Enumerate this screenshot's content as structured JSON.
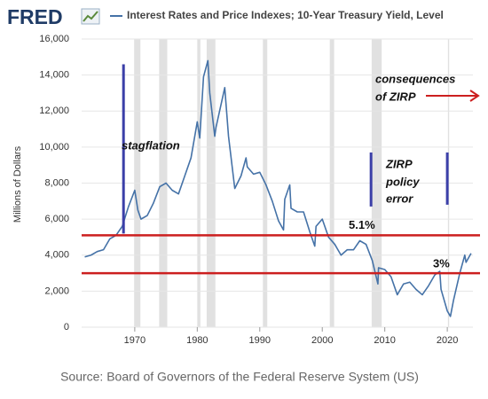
{
  "chart_data": {
    "type": "line",
    "logo": "FRED",
    "y_label": "Millions of Dollars",
    "source": "Source: Board of Governors of the Federal Reserve System (US)",
    "xlim": [
      1961.5,
      2024.1
    ],
    "xticks": [
      1970,
      1980,
      1990,
      2000,
      2010,
      2020
    ],
    "ylim": [
      0,
      16000
    ],
    "yticks": [
      0,
      {
        "value": 2000,
        "label": "2,000"
      },
      {
        "value": 4000,
        "label": "4,000"
      },
      {
        "value": 6000,
        "label": "6,000"
      },
      {
        "value": 8000,
        "label": "8,000"
      },
      {
        "value": 10000,
        "label": "10,000"
      },
      {
        "value": 12000,
        "label": "12,000"
      },
      {
        "value": 14000,
        "label": "14,000"
      },
      {
        "value": 16000,
        "label": "16,000"
      }
    ],
    "grid": true,
    "x": [
      1962,
      1963,
      1964,
      1965,
      1966,
      1967,
      1968,
      1969,
      1970,
      1970.5,
      1971,
      1972,
      1973,
      1974,
      1975,
      1976,
      1977,
      1978,
      1979,
      1980,
      1980.4,
      1981,
      1981.7,
      1982,
      1982.8,
      1983,
      1984.4,
      1985,
      1986,
      1987,
      1987.8,
      1988,
      1989,
      1990,
      1991,
      1992,
      1993,
      1993.8,
      1994,
      1994.8,
      1995,
      1996,
      1997,
      1998,
      1998.8,
      1999,
      2000,
      2001,
      2002,
      2003,
      2004,
      2005,
      2006,
      2007,
      2008,
      2008.9,
      2009,
      2010,
      2011,
      2012,
      2013,
      2014,
      2015,
      2016,
      2017,
      2018,
      2018.8,
      2019,
      2020,
      2020.5,
      2021,
      2022,
      2022.8,
      2023,
      2023.8
    ],
    "series": [
      {
        "name": "Interest Rates and Price Indexes; 10-Year Treasury Yield, Level",
        "color": "#4572a7",
        "values": [
          3900,
          4000,
          4200,
          4300,
          4900,
          5100,
          5600,
          6700,
          7600,
          6500,
          6000,
          6200,
          6900,
          7800,
          8000,
          7600,
          7400,
          8400,
          9400,
          11400,
          10500,
          13900,
          14800,
          13000,
          10600,
          11100,
          13300,
          10600,
          7700,
          8400,
          9400,
          8900,
          8500,
          8600,
          7900,
          7000,
          5900,
          5400,
          7100,
          7900,
          6600,
          6400,
          6400,
          5300,
          4500,
          5600,
          6000,
          5000,
          4600,
          4000,
          4300,
          4300,
          4800,
          4600,
          3700,
          2400,
          3300,
          3200,
          2800,
          1800,
          2400,
          2500,
          2100,
          1800,
          2300,
          2900,
          3100,
          2100,
          900,
          600,
          1500,
          3000,
          4000,
          3600,
          4100
        ]
      }
    ],
    "recessions": [
      [
        1969.9,
        1970.9
      ],
      [
        1973.9,
        1975.2
      ],
      [
        1980.0,
        1980.5
      ],
      [
        1981.5,
        1982.9
      ],
      [
        1990.5,
        1991.2
      ],
      [
        2001.2,
        2001.9
      ],
      [
        2007.9,
        2009.5
      ],
      [
        2020.1,
        2020.3
      ]
    ],
    "recession_color": "#e1e1e1",
    "reference_lines": [
      {
        "value": 5100,
        "label": "5.1%",
        "color": "#cc1f1f"
      },
      {
        "value": 3000,
        "label": "3%",
        "color": "#cc1f1f"
      }
    ],
    "annotation_bars": [
      {
        "x": 1968.2,
        "from": 5200,
        "to": 14600
      },
      {
        "x": 2007.8,
        "from": 6700,
        "to": 9700
      },
      {
        "x": 2020.0,
        "from": 6800,
        "to": 9700
      }
    ],
    "annotation_bar_color": "#3b3fa8",
    "annotations": [
      "stagflation",
      "ZIRP",
      "policy",
      "error",
      "consequences",
      "of ZIRP"
    ]
  }
}
